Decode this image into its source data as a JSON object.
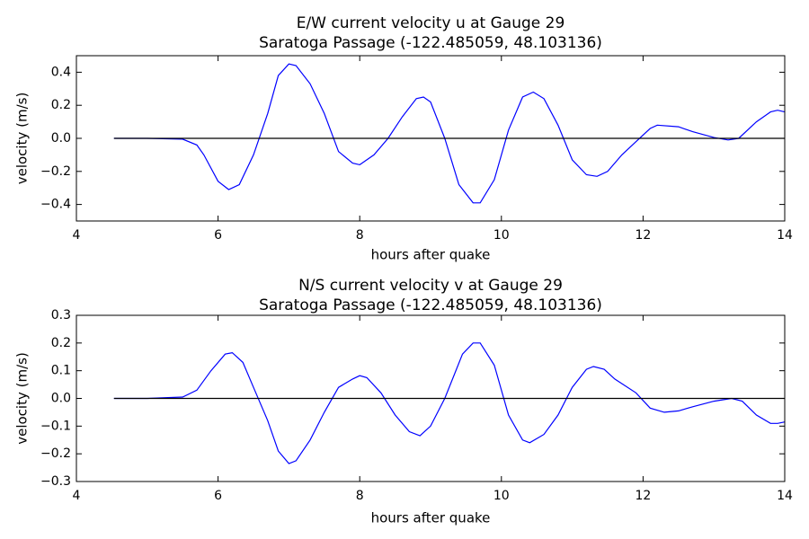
{
  "chart_data": [
    {
      "type": "line",
      "title": "E/W current velocity u at Gauge 29",
      "subtitle": "Saratoga Passage  (-122.485059, 48.103136)",
      "x_label": "hours after quake",
      "y_label": "velocity (m/s)",
      "xlim": [
        4,
        14
      ],
      "xticks": [
        4,
        6,
        8,
        10,
        12,
        14
      ],
      "ylim": [
        -0.5,
        0.5
      ],
      "yticks": [
        {
          "value": -0.4,
          "label": "−0.4"
        },
        {
          "value": -0.2,
          "label": "−0.2"
        },
        {
          "value": 0,
          "label": "0.0"
        },
        0.2,
        0.4
      ],
      "series": [
        {
          "color": "#0000ff",
          "x": [
            4.53,
            5.0,
            5.5,
            5.7,
            5.8,
            6.0,
            6.15,
            6.3,
            6.5,
            6.7,
            6.85,
            7.0,
            7.1,
            7.3,
            7.5,
            7.7,
            7.9,
            8.0,
            8.2,
            8.4,
            8.6,
            8.8,
            8.9,
            9.0,
            9.2,
            9.4,
            9.6,
            9.7,
            9.9,
            10.1,
            10.3,
            10.45,
            10.6,
            10.8,
            11.0,
            11.2,
            11.35,
            11.5,
            11.7,
            11.9,
            12.1,
            12.2,
            12.5,
            12.7,
            13.0,
            13.2,
            13.35,
            13.6,
            13.8,
            13.9,
            14.0
          ],
          "values": [
            0,
            0,
            -0.005,
            -0.04,
            -0.1,
            -0.26,
            -0.31,
            -0.28,
            -0.1,
            0.15,
            0.38,
            0.45,
            0.44,
            0.33,
            0.15,
            -0.08,
            -0.15,
            -0.16,
            -0.1,
            0.0,
            0.13,
            0.24,
            0.25,
            0.22,
            0.0,
            -0.28,
            -0.39,
            -0.39,
            -0.25,
            0.05,
            0.25,
            0.28,
            0.24,
            0.08,
            -0.13,
            -0.22,
            -0.23,
            -0.2,
            -0.1,
            -0.02,
            0.06,
            0.08,
            0.07,
            0.04,
            0.005,
            -0.01,
            0.0,
            0.1,
            0.16,
            0.17,
            0.16
          ]
        },
        {
          "color": "#000000",
          "x": [
            4.53,
            14.0
          ],
          "values": [
            0,
            0
          ]
        }
      ]
    },
    {
      "type": "line",
      "title": "N/S current velocity v at Gauge 29",
      "subtitle": "Saratoga Passage  (-122.485059, 48.103136)",
      "x_label": "hours after quake",
      "y_label": "velocity (m/s)",
      "xlim": [
        4,
        14
      ],
      "xticks": [
        4,
        6,
        8,
        10,
        12,
        14
      ],
      "ylim": [
        -0.3,
        0.3
      ],
      "yticks": [
        {
          "value": -0.3,
          "label": "−0.3"
        },
        {
          "value": -0.2,
          "label": "−0.2"
        },
        {
          "value": -0.1,
          "label": "−0.1"
        },
        {
          "value": 0,
          "label": "0.0"
        },
        0.1,
        0.2,
        0.3
      ],
      "series": [
        {
          "color": "#0000ff",
          "x": [
            4.53,
            5.0,
            5.5,
            5.7,
            5.9,
            6.1,
            6.2,
            6.35,
            6.5,
            6.7,
            6.85,
            7.0,
            7.1,
            7.3,
            7.5,
            7.7,
            7.9,
            8.0,
            8.1,
            8.3,
            8.5,
            8.7,
            8.85,
            9.0,
            9.2,
            9.45,
            9.6,
            9.7,
            9.9,
            10.1,
            10.3,
            10.4,
            10.6,
            10.8,
            11.0,
            11.2,
            11.3,
            11.45,
            11.6,
            11.9,
            12.1,
            12.3,
            12.5,
            12.7,
            13.0,
            13.25,
            13.4,
            13.6,
            13.8,
            13.9,
            14.0
          ],
          "values": [
            0,
            0,
            0.005,
            0.03,
            0.1,
            0.16,
            0.165,
            0.13,
            0.04,
            -0.08,
            -0.19,
            -0.235,
            -0.225,
            -0.15,
            -0.05,
            0.04,
            0.07,
            0.082,
            0.075,
            0.02,
            -0.06,
            -0.12,
            -0.135,
            -0.1,
            0.0,
            0.16,
            0.2,
            0.2,
            0.12,
            -0.06,
            -0.15,
            -0.16,
            -0.13,
            -0.06,
            0.04,
            0.105,
            0.115,
            0.105,
            0.07,
            0.02,
            -0.035,
            -0.05,
            -0.045,
            -0.03,
            -0.01,
            0.0,
            -0.01,
            -0.06,
            -0.09,
            -0.09,
            -0.085
          ]
        },
        {
          "color": "#000000",
          "x": [
            4.53,
            14.0
          ],
          "values": [
            0,
            0
          ]
        }
      ]
    }
  ]
}
